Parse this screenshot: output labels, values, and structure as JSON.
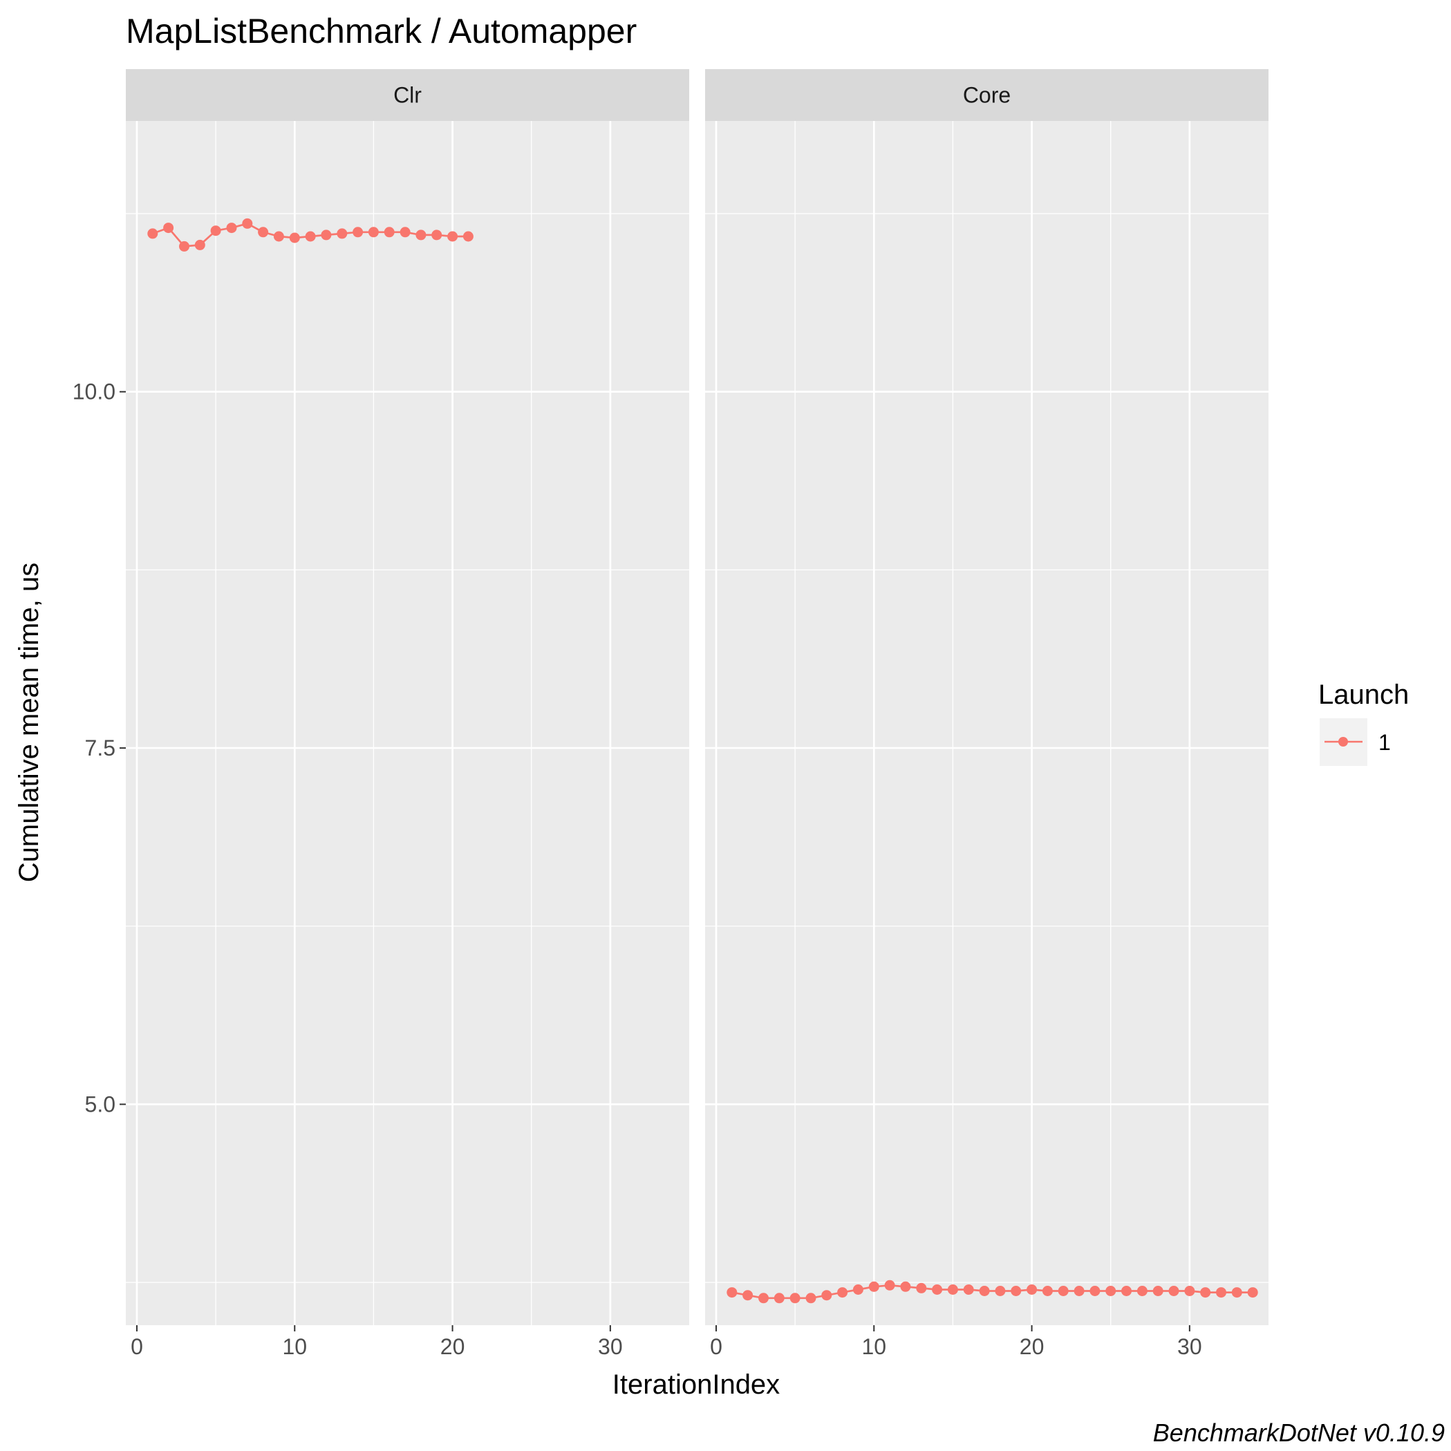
{
  "chart_data": {
    "type": "line",
    "title": "MapListBenchmark / Automapper",
    "xlabel": "IterationIndex",
    "ylabel": "Cumulative mean time, us",
    "caption": "BenchmarkDotNet v0.10.9",
    "xlim": [
      -0.7,
      35
    ],
    "ylim": [
      3.45,
      11.9
    ],
    "x_ticks": [
      {
        "value": 0,
        "label": "0"
      },
      {
        "value": 10,
        "label": "10"
      },
      {
        "value": 20,
        "label": "20"
      },
      {
        "value": 30,
        "label": "30"
      }
    ],
    "y_ticks": [
      {
        "value": 5.0,
        "label": "5.0"
      },
      {
        "value": 7.5,
        "label": "7.5"
      },
      {
        "value": 10.0,
        "label": "10.0"
      }
    ],
    "grid": true,
    "legend": {
      "title": "Launch",
      "position": "right",
      "entries": [
        {
          "label": "1",
          "color": "#F8766D"
        }
      ]
    },
    "facets": [
      {
        "label": "Clr",
        "series": [
          {
            "name": "1",
            "color": "#F8766D",
            "x": [
              1,
              2,
              3,
              4,
              5,
              6,
              7,
              8,
              9,
              10,
              11,
              12,
              13,
              14,
              15,
              16,
              17,
              18,
              19,
              20,
              21
            ],
            "y": [
              11.11,
              11.15,
              11.02,
              11.03,
              11.13,
              11.15,
              11.18,
              11.12,
              11.09,
              11.08,
              11.09,
              11.1,
              11.11,
              11.12,
              11.12,
              11.12,
              11.12,
              11.1,
              11.1,
              11.09,
              11.09
            ]
          }
        ]
      },
      {
        "label": "Core",
        "series": [
          {
            "name": "1",
            "color": "#F8766D",
            "x": [
              1,
              2,
              3,
              4,
              5,
              6,
              7,
              8,
              9,
              10,
              11,
              12,
              13,
              14,
              15,
              16,
              17,
              18,
              19,
              20,
              21,
              22,
              23,
              24,
              25,
              26,
              27,
              28,
              29,
              30,
              31,
              32,
              33,
              34
            ],
            "y": [
              3.68,
              3.66,
              3.64,
              3.64,
              3.64,
              3.64,
              3.66,
              3.68,
              3.7,
              3.72,
              3.73,
              3.72,
              3.71,
              3.7,
              3.7,
              3.7,
              3.69,
              3.69,
              3.69,
              3.7,
              3.69,
              3.69,
              3.69,
              3.69,
              3.69,
              3.69,
              3.69,
              3.69,
              3.69,
              3.69,
              3.68,
              3.68,
              3.68,
              3.68
            ]
          }
        ]
      }
    ]
  }
}
